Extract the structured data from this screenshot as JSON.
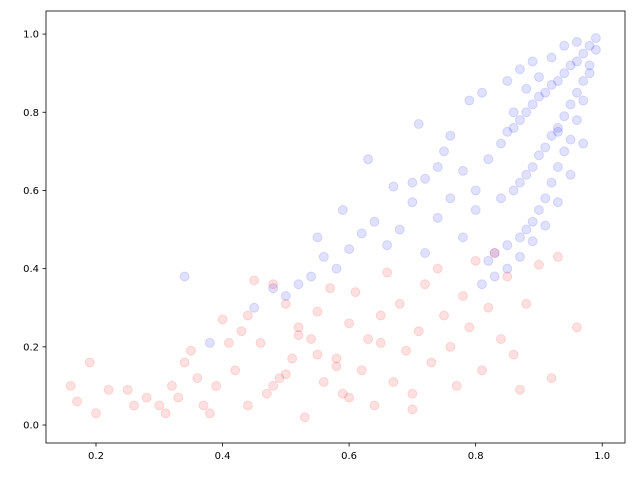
{
  "chart_data": {
    "type": "scatter",
    "xlim": [
      0.121,
      1.036
    ],
    "ylim": [
      -0.046,
      1.059
    ],
    "xticks": [
      0.2,
      0.4,
      0.6,
      0.8,
      {
        "value": 1,
        "label": "1.0"
      }
    ],
    "yticks": [
      {
        "value": 0,
        "label": "0.0"
      },
      0.2,
      0.4,
      0.6,
      0.8,
      {
        "value": 1,
        "label": "1.0"
      }
    ],
    "alpha": 0.12,
    "series": [
      {
        "color": "#0000ff",
        "x": [
          0.99,
          0.98,
          0.97,
          0.96,
          0.95,
          0.94,
          0.93,
          0.92,
          0.91,
          0.9,
          0.89,
          0.88,
          0.87,
          0.86,
          0.85,
          0.99,
          0.98,
          0.97,
          0.96,
          0.95,
          0.94,
          0.93,
          0.92,
          0.91,
          0.9,
          0.89,
          0.88,
          0.87,
          0.86,
          0.84,
          0.98,
          0.97,
          0.96,
          0.95,
          0.94,
          0.93,
          0.92,
          0.91,
          0.9,
          0.89,
          0.88,
          0.87,
          0.85,
          0.83,
          0.82,
          0.97,
          0.95,
          0.93,
          0.91,
          0.89,
          0.87,
          0.85,
          0.83,
          0.81,
          0.8,
          0.78,
          0.76,
          0.74,
          0.72,
          0.7,
          0.68,
          0.66,
          0.64,
          0.62,
          0.6,
          0.58,
          0.56,
          0.54,
          0.52,
          0.5,
          0.88,
          0.86,
          0.84,
          0.82,
          0.8,
          0.78,
          0.76,
          0.74,
          0.72,
          0.7,
          0.92,
          0.9,
          0.94,
          0.96,
          0.85,
          0.79,
          0.75,
          0.71,
          0.67,
          0.63,
          0.59,
          0.55,
          0.48,
          0.45,
          0.34,
          0.38,
          0.93,
          0.89,
          0.87,
          0.81
        ],
        "values": [
          0.99,
          0.97,
          0.95,
          0.93,
          0.92,
          0.9,
          0.88,
          0.87,
          0.85,
          0.84,
          0.82,
          0.8,
          0.78,
          0.76,
          0.75,
          0.96,
          0.92,
          0.88,
          0.85,
          0.82,
          0.79,
          0.76,
          0.74,
          0.71,
          0.69,
          0.66,
          0.64,
          0.62,
          0.6,
          0.58,
          0.9,
          0.83,
          0.78,
          0.73,
          0.7,
          0.66,
          0.62,
          0.58,
          0.55,
          0.52,
          0.5,
          0.48,
          0.46,
          0.44,
          0.42,
          0.72,
          0.64,
          0.57,
          0.51,
          0.47,
          0.43,
          0.4,
          0.38,
          0.36,
          0.6,
          0.65,
          0.58,
          0.53,
          0.63,
          0.57,
          0.5,
          0.46,
          0.52,
          0.49,
          0.45,
          0.4,
          0.43,
          0.38,
          0.36,
          0.33,
          0.86,
          0.8,
          0.72,
          0.68,
          0.55,
          0.48,
          0.74,
          0.66,
          0.44,
          0.62,
          0.94,
          0.89,
          0.97,
          0.98,
          0.88,
          0.83,
          0.7,
          0.77,
          0.61,
          0.68,
          0.55,
          0.48,
          0.35,
          0.3,
          0.38,
          0.21,
          0.75,
          0.93,
          0.91,
          0.85
        ]
      },
      {
        "color": "#ff0000",
        "x": [
          0.16,
          0.17,
          0.19,
          0.2,
          0.22,
          0.25,
          0.26,
          0.28,
          0.3,
          0.31,
          0.32,
          0.33,
          0.34,
          0.35,
          0.36,
          0.37,
          0.38,
          0.39,
          0.4,
          0.41,
          0.42,
          0.43,
          0.44,
          0.45,
          0.46,
          0.47,
          0.48,
          0.49,
          0.5,
          0.51,
          0.52,
          0.53,
          0.54,
          0.55,
          0.56,
          0.57,
          0.58,
          0.59,
          0.6,
          0.61,
          0.62,
          0.63,
          0.64,
          0.65,
          0.66,
          0.67,
          0.68,
          0.69,
          0.7,
          0.71,
          0.72,
          0.73,
          0.74,
          0.75,
          0.76,
          0.77,
          0.78,
          0.79,
          0.8,
          0.81,
          0.82,
          0.83,
          0.84,
          0.85,
          0.86,
          0.87,
          0.88,
          0.9,
          0.92,
          0.93,
          0.96,
          0.44,
          0.5,
          0.55,
          0.6,
          0.65,
          0.7,
          0.48,
          0.52,
          0.58
        ],
        "values": [
          0.1,
          0.06,
          0.16,
          0.03,
          0.09,
          0.09,
          0.05,
          0.07,
          0.05,
          0.03,
          0.1,
          0.07,
          0.16,
          0.19,
          0.12,
          0.05,
          0.03,
          0.1,
          0.27,
          0.21,
          0.14,
          0.24,
          0.05,
          0.37,
          0.21,
          0.08,
          0.36,
          0.12,
          0.31,
          0.17,
          0.25,
          0.02,
          0.22,
          0.29,
          0.11,
          0.35,
          0.17,
          0.08,
          0.26,
          0.34,
          0.14,
          0.22,
          0.05,
          0.28,
          0.39,
          0.11,
          0.31,
          0.19,
          0.08,
          0.24,
          0.36,
          0.16,
          0.4,
          0.28,
          0.2,
          0.1,
          0.33,
          0.25,
          0.42,
          0.14,
          0.3,
          0.44,
          0.22,
          0.38,
          0.18,
          0.09,
          0.31,
          0.41,
          0.12,
          0.43,
          0.25,
          0.28,
          0.13,
          0.18,
          0.07,
          0.21,
          0.04,
          0.1,
          0.23,
          0.15
        ]
      }
    ]
  }
}
